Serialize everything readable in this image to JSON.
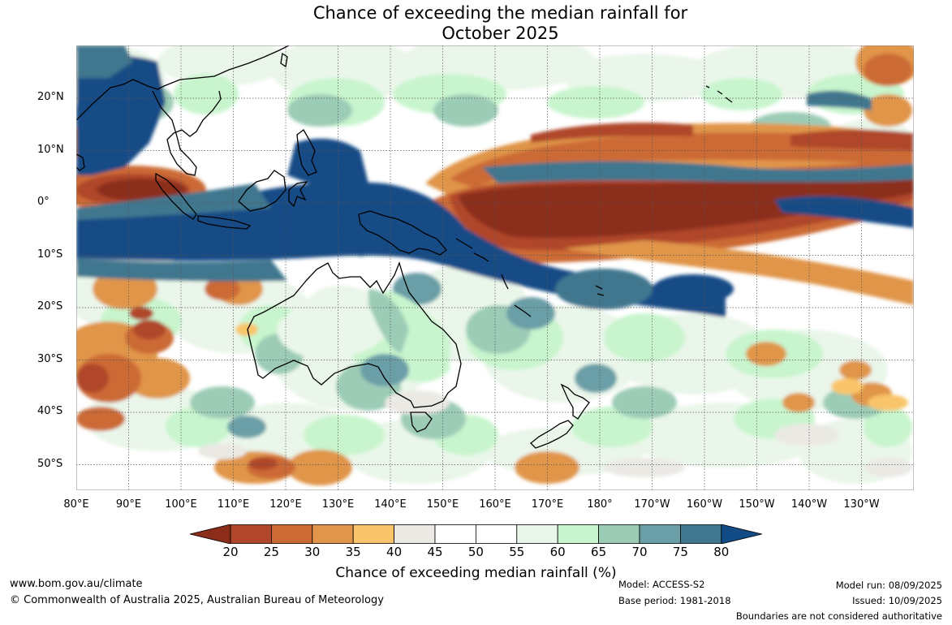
{
  "title": {
    "line1": "Chance of exceeding the median rainfall for",
    "line2": "October 2025"
  },
  "map": {
    "latitude_labels": [
      "20°N",
      "10°N",
      "0°",
      "10°S",
      "20°S",
      "30°S",
      "40°S",
      "50°S"
    ],
    "longitude_labels": [
      "80°E",
      "90°E",
      "100°E",
      "110°E",
      "120°E",
      "130°E",
      "140°E",
      "150°E",
      "160°E",
      "170°E",
      "180°",
      "170°W",
      "160°W",
      "150°W",
      "140°W",
      "130°W"
    ]
  },
  "legend": {
    "ticks": [
      "20",
      "25",
      "30",
      "35",
      "40",
      "45",
      "50",
      "55",
      "60",
      "65",
      "70",
      "75",
      "80"
    ],
    "label": "Chance of exceeding median rainfall (%)",
    "colors": [
      "#8c2d1b",
      "#b0472a",
      "#cc6a35",
      "#e0954a",
      "#f9c56a",
      "#ebe9e4",
      "#ffffff",
      "#ffffff",
      "#eaf6ea",
      "#c8f5cd",
      "#9cccb6",
      "#6a9fa7",
      "#41778f",
      "#134b86"
    ]
  },
  "footer": {
    "website": "www.bom.gov.au/climate",
    "copyright": "© Commonwealth of Australia 2025, Australian Bureau of Meteorology",
    "model": "Model: ACCESS-S2",
    "base_period": "Base period: 1981-2018",
    "model_run": "Model run: 08/09/2025",
    "issued": "Issued: 10/09/2025",
    "disclaimer": "Boundaries are not considered authoritative"
  }
}
